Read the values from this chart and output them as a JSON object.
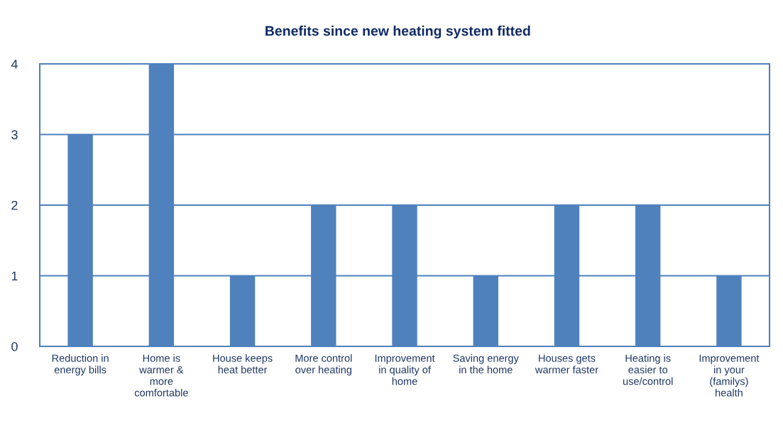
{
  "chart_data": {
    "type": "bar",
    "title": "Benefits since new heating system fitted",
    "categories": [
      "Reduction in energy bills",
      "Home is warmer & more comfortable",
      "House keeps heat better",
      "More control over heating",
      "Improvement in quality of home",
      "Saving energy in the home",
      "Houses gets warmer faster",
      "Heating is easier to use/control",
      "Improvement in your (familys) health"
    ],
    "values": [
      3,
      4,
      1,
      2,
      2,
      1,
      2,
      2,
      1
    ],
    "color": "#4f81bd",
    "ylim": [
      0,
      4
    ],
    "yticks": [
      0,
      1,
      2,
      3,
      4
    ],
    "grid": "y",
    "legend": false
  }
}
